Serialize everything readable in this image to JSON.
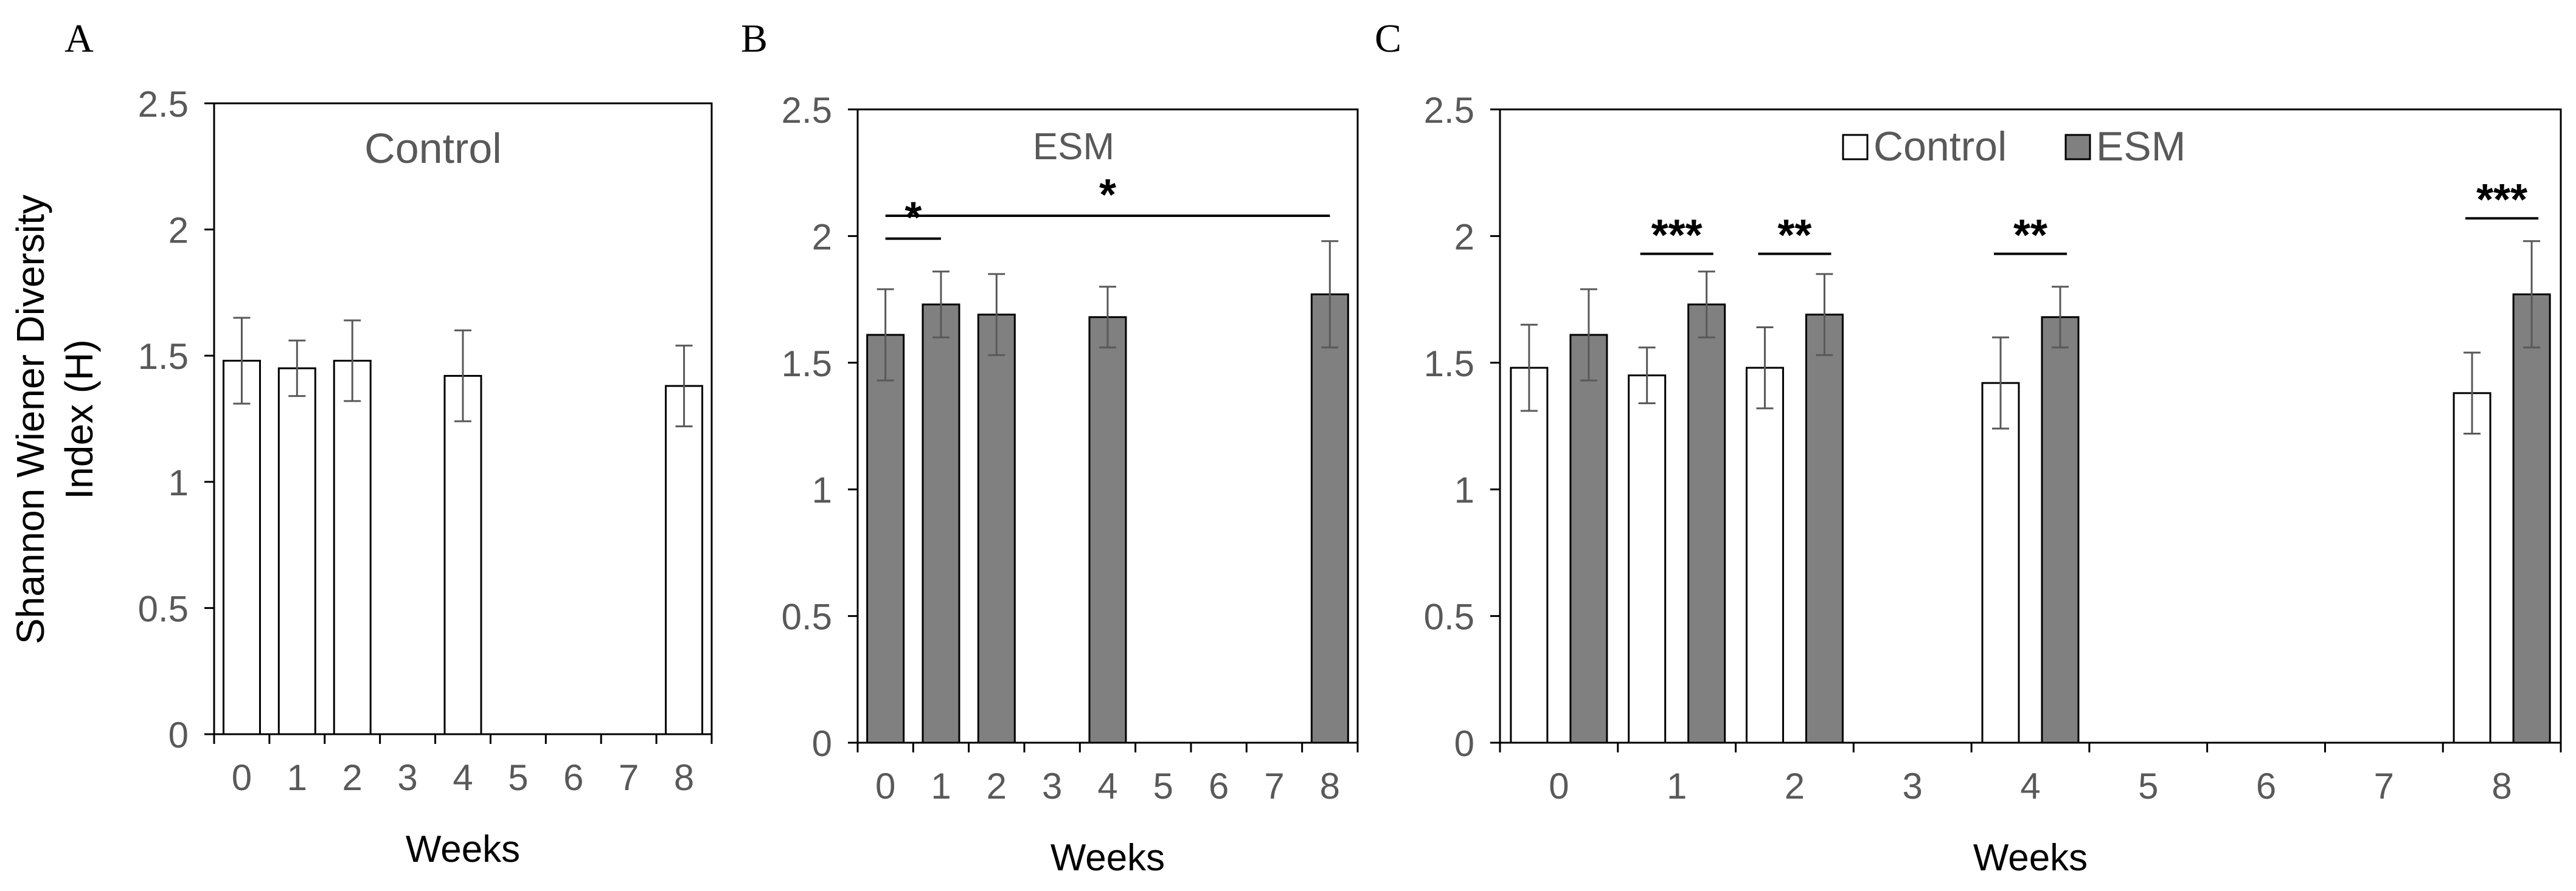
{
  "figure": {
    "ylabel_line1": "Shannon Wiener Diversity",
    "ylabel_line2": "Index (H)"
  },
  "colors": {
    "control_fill": "#ffffff",
    "esm_fill": "#808080",
    "bar_stroke": "#000000",
    "error_bar": "#595959",
    "axis": "#000000",
    "text": "#595959"
  },
  "chart_data": [
    {
      "panel": "A",
      "type": "bar",
      "title": "Control",
      "xlabel": "Weeks",
      "ylabel": "Shannon Wiener Diversity Index (H)",
      "ylim": [
        0,
        2.5
      ],
      "yticks": [
        0,
        0.5,
        1,
        1.5,
        2,
        2.5
      ],
      "ytick_labels": [
        "0",
        "0.5",
        "1",
        "1.5",
        "2",
        "2.5"
      ],
      "categories": [
        "0",
        "1",
        "2",
        "3",
        "4",
        "5",
        "6",
        "7",
        "8"
      ],
      "series": [
        {
          "name": "Control",
          "color": "#ffffff",
          "values": [
            1.48,
            1.45,
            1.48,
            null,
            1.42,
            null,
            null,
            null,
            1.38
          ],
          "errors": [
            0.17,
            0.11,
            0.16,
            null,
            0.18,
            null,
            null,
            null,
            0.16
          ]
        }
      ],
      "significance": []
    },
    {
      "panel": "B",
      "type": "bar",
      "title": "ESM",
      "xlabel": "Weeks",
      "ylabel": "",
      "ylim": [
        0,
        2.5
      ],
      "yticks": [
        0,
        0.5,
        1,
        1.5,
        2,
        2.5
      ],
      "ytick_labels": [
        "0",
        "0.5",
        "1",
        "1.5",
        "2",
        "2.5"
      ],
      "categories": [
        "0",
        "1",
        "2",
        "3",
        "4",
        "5",
        "6",
        "7",
        "8"
      ],
      "series": [
        {
          "name": "ESM",
          "color": "#808080",
          "values": [
            1.61,
            1.73,
            1.69,
            null,
            1.68,
            null,
            null,
            null,
            1.77
          ],
          "errors": [
            0.18,
            0.13,
            0.16,
            null,
            0.12,
            null,
            null,
            null,
            0.21
          ]
        }
      ],
      "significance": [
        {
          "from": "0",
          "to": "1",
          "label": "*",
          "y": 1.99
        },
        {
          "from": "0",
          "to": "8",
          "label": "*",
          "y": 2.08
        }
      ]
    },
    {
      "panel": "C",
      "type": "bar",
      "title": "",
      "xlabel": "Weeks",
      "ylabel": "",
      "ylim": [
        0,
        2.5
      ],
      "yticks": [
        0,
        0.5,
        1,
        1.5,
        2,
        2.5
      ],
      "ytick_labels": [
        "0",
        "0.5",
        "1",
        "1.5",
        "2",
        "2.5"
      ],
      "categories": [
        "0",
        "1",
        "2",
        "3",
        "4",
        "5",
        "6",
        "7",
        "8"
      ],
      "legend": [
        "Control",
        "ESM"
      ],
      "series": [
        {
          "name": "Control",
          "color": "#ffffff",
          "values": [
            1.48,
            1.45,
            1.48,
            null,
            1.42,
            null,
            null,
            null,
            1.38
          ],
          "errors": [
            0.17,
            0.11,
            0.16,
            null,
            0.18,
            null,
            null,
            null,
            0.16
          ]
        },
        {
          "name": "ESM",
          "color": "#808080",
          "values": [
            1.61,
            1.73,
            1.69,
            null,
            1.68,
            null,
            null,
            null,
            1.77
          ],
          "errors": [
            0.18,
            0.13,
            0.16,
            null,
            0.12,
            null,
            null,
            null,
            0.21
          ]
        }
      ],
      "significance": [
        {
          "category": "1",
          "label": "***",
          "y": 1.93
        },
        {
          "category": "2",
          "label": "**",
          "y": 1.93
        },
        {
          "category": "4",
          "label": "**",
          "y": 1.93
        },
        {
          "category": "8",
          "label": "***",
          "y": 2.07
        }
      ]
    }
  ]
}
